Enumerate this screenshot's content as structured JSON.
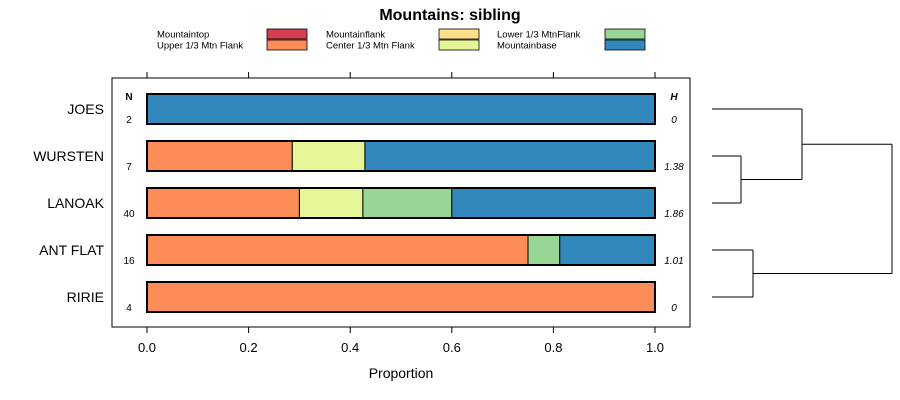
{
  "chart_data": {
    "type": "bar",
    "stacked": true,
    "orientation": "horizontal",
    "title": "Mountains: sibling",
    "xlabel": "Proportion",
    "ylabel": "",
    "xlim": [
      0,
      1
    ],
    "xticks": [
      "0.0",
      "0.2",
      "0.4",
      "0.6",
      "0.8",
      "1.0"
    ],
    "legend_position": "top",
    "n_header": "N",
    "h_header": "H",
    "categories": [
      "JOES",
      "WURSTEN",
      "LANOAK",
      "ANT FLAT",
      "RIRIE"
    ],
    "n_values": [
      "2",
      "7",
      "40",
      "16",
      "4"
    ],
    "h_values": [
      "0",
      "1.38",
      "1.86",
      "1.01",
      "0"
    ],
    "series": [
      {
        "name": "Mountaintop",
        "color": "#d53e4f",
        "values": [
          0,
          0,
          0,
          0,
          0
        ]
      },
      {
        "name": "Upper 1/3 Mtn Flank",
        "color": "#fc8d59",
        "values": [
          0,
          0.286,
          0.3,
          0.75,
          1.0
        ]
      },
      {
        "name": "Mountainflank",
        "color": "#fee08b",
        "values": [
          0,
          0,
          0,
          0,
          0
        ]
      },
      {
        "name": "Center 1/3 Mtn Flank",
        "color": "#e6f598",
        "values": [
          0,
          0.143,
          0.125,
          0,
          0
        ]
      },
      {
        "name": "Lower 1/3 MtnFlank",
        "color": "#99d594",
        "values": [
          0,
          0,
          0.175,
          0.0625,
          0
        ]
      },
      {
        "name": "Mountainbase",
        "color": "#3288bd",
        "values": [
          1.0,
          0.571,
          0.4,
          0.1875,
          0
        ]
      }
    ],
    "dendrogram": {
      "merges": [
        [
          "WURSTEN",
          "LANOAK"
        ],
        [
          "JOES",
          "WURSTEN+LANOAK"
        ],
        [
          "ANT FLAT",
          "RIRIE"
        ],
        [
          "all-top",
          "all-bottom"
        ]
      ]
    }
  }
}
